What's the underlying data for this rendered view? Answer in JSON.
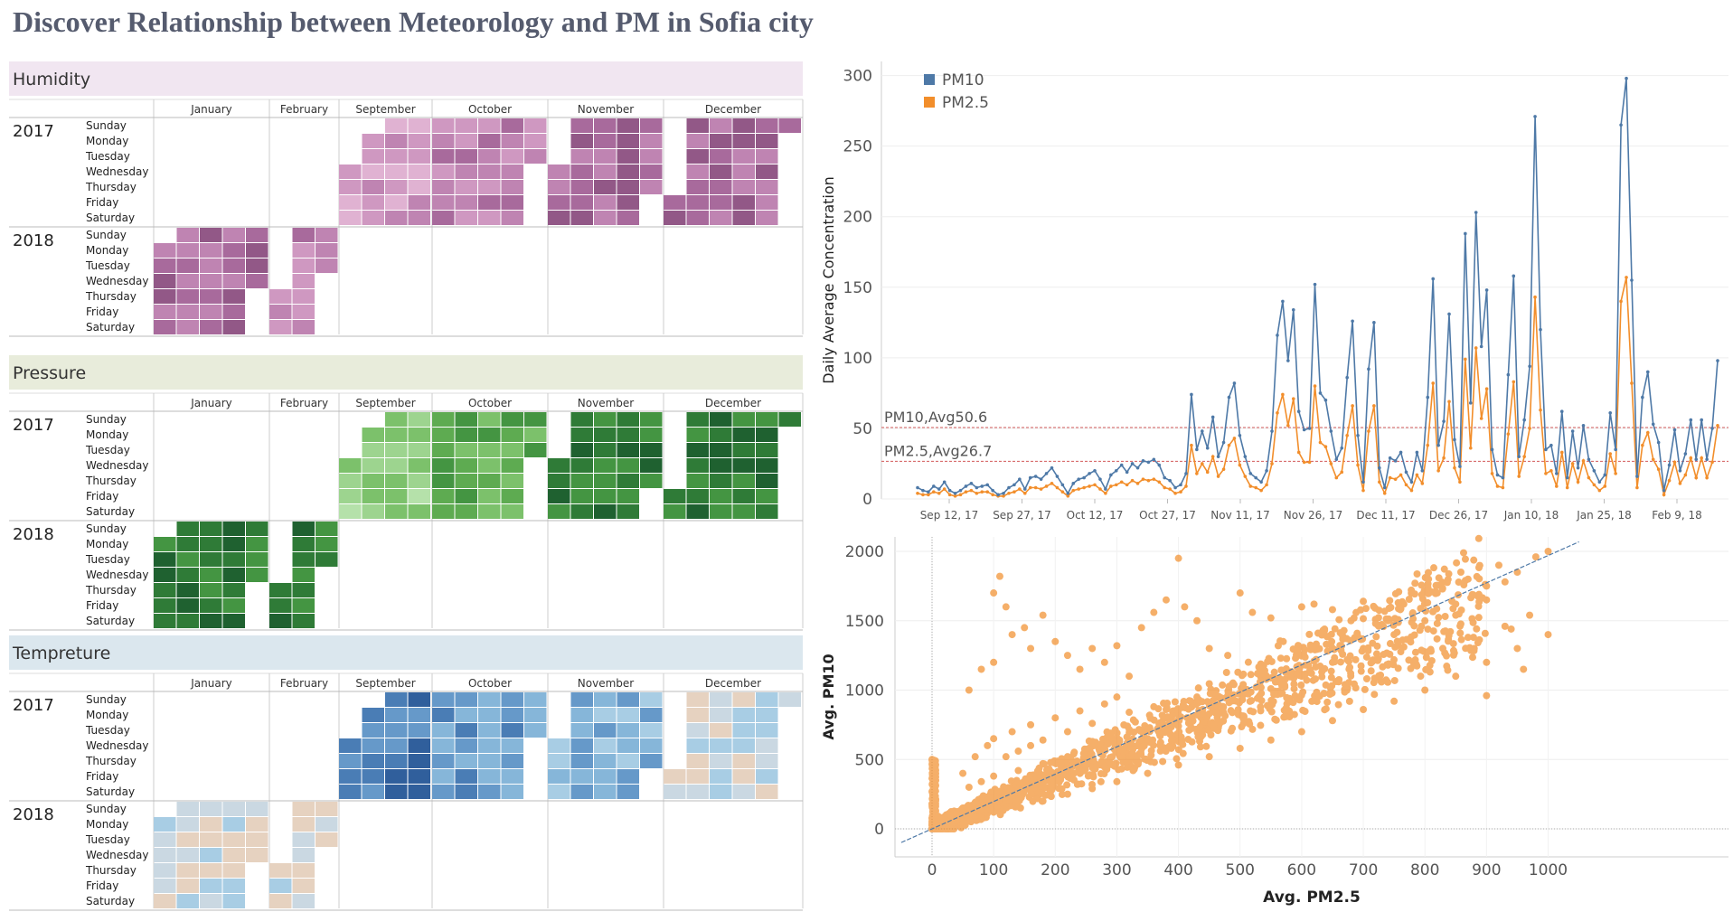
{
  "page_title": "Discover Relationship between Meteorology and PM in Sofia city",
  "heatmaps": {
    "months": [
      "January",
      "February",
      "September",
      "October",
      "November",
      "December"
    ],
    "days": [
      "Sunday",
      "Monday",
      "Tuesday",
      "Wednesday",
      "Thursday",
      "Friday",
      "Saturday"
    ],
    "years": [
      "2017",
      "2018"
    ],
    "panels": [
      {
        "title": "Humidity",
        "header_color": "#f1e6f1",
        "palette": [
          "#ecc6e1",
          "#e0b2d2",
          "#cf98c1",
          "#bf84b2",
          "#a86a9c",
          "#925887",
          "#7a4671"
        ]
      },
      {
        "title": "Pressure",
        "header_color": "#e8ecdb",
        "palette": [
          "#b5e1aa",
          "#9dd48f",
          "#7cc16b",
          "#5eab51",
          "#449542",
          "#2f7b37",
          "#1f6130"
        ]
      },
      {
        "title": "Tempreture",
        "header_color": "#dbe7ee",
        "palette": [
          "#f5c89a",
          "#e6d2c0",
          "#cad8e2",
          "#a8cde4",
          "#86b6d9",
          "#6699c9",
          "#4a7db5",
          "#305f9c"
        ]
      }
    ]
  },
  "chart_data": [
    {
      "type": "line",
      "ylabel": "Daily Average Concentration",
      "xlabel": "",
      "ylim": [
        0,
        310
      ],
      "yticks": [
        0,
        50,
        100,
        150,
        200,
        250,
        300
      ],
      "x_tick_labels": [
        "Sep 12, 17",
        "Sep 27, 17",
        "Oct 12, 17",
        "Oct 27, 17",
        "Nov 11, 17",
        "Nov 26, 17",
        "Dec 11, 17",
        "Dec 26, 17",
        "Jan 10, 18",
        "Jan 25, 18",
        "Feb 9, 18"
      ],
      "x_start": "2017-09-10",
      "legend": "top-left",
      "reference_lines": [
        {
          "label": "PM10,Avg50.6",
          "value": 50.6
        },
        {
          "label": "PM2.5,Avg26.7",
          "value": 26.7
        }
      ],
      "series": [
        {
          "name": "PM10",
          "color": "#4e79a7",
          "values": [
            8,
            6,
            5,
            9,
            7,
            12,
            6,
            4,
            6,
            9,
            11,
            8,
            9,
            10,
            6,
            3,
            4,
            8,
            10,
            14,
            7,
            15,
            16,
            14,
            18,
            22,
            16,
            10,
            4,
            11,
            14,
            15,
            18,
            20,
            14,
            7,
            17,
            20,
            24,
            19,
            25,
            22,
            27,
            26,
            28,
            24,
            15,
            13,
            8,
            10,
            18,
            74,
            35,
            48,
            36,
            58,
            30,
            40,
            72,
            82,
            45,
            30,
            18,
            15,
            12,
            20,
            48,
            116,
            140,
            98,
            134,
            62,
            49,
            50,
            152,
            75,
            70,
            48,
            28,
            36,
            86,
            126,
            45,
            12,
            92,
            125,
            22,
            8,
            29,
            27,
            33,
            19,
            12,
            33,
            20,
            72,
            156,
            38,
            55,
            131,
            42,
            23,
            188,
            68,
            203,
            108,
            148,
            35,
            17,
            15,
            88,
            158,
            30,
            56,
            94,
            271,
            120,
            35,
            38,
            18,
            62,
            15,
            48,
            22,
            52,
            28,
            20,
            12,
            17,
            61,
            35,
            265,
            298,
            155,
            16,
            72,
            90,
            53,
            40,
            6,
            24,
            49,
            20,
            32,
            56,
            28,
            56,
            28,
            50,
            98
          ]
        },
        {
          "name": "PM2.5",
          "color": "#f28e2b",
          "values": [
            4,
            3,
            3,
            5,
            4,
            7,
            3,
            2,
            3,
            5,
            6,
            4,
            5,
            5,
            3,
            2,
            2,
            4,
            5,
            7,
            4,
            8,
            8,
            7,
            9,
            11,
            8,
            5,
            2,
            6,
            7,
            8,
            9,
            10,
            7,
            4,
            9,
            10,
            12,
            10,
            13,
            11,
            14,
            13,
            14,
            12,
            8,
            7,
            4,
            5,
            9,
            38,
            18,
            25,
            19,
            30,
            16,
            21,
            38,
            43,
            24,
            16,
            9,
            8,
            6,
            10,
            25,
            61,
            74,
            52,
            71,
            33,
            26,
            26,
            80,
            40,
            37,
            25,
            15,
            19,
            45,
            66,
            24,
            6,
            48,
            66,
            12,
            4,
            15,
            14,
            17,
            10,
            6,
            17,
            11,
            38,
            82,
            20,
            29,
            69,
            22,
            12,
            99,
            36,
            107,
            57,
            78,
            18,
            9,
            8,
            46,
            83,
            16,
            30,
            50,
            143,
            63,
            18,
            20,
            9,
            33,
            8,
            25,
            12,
            27,
            15,
            10,
            6,
            9,
            32,
            18,
            140,
            157,
            82,
            8,
            38,
            47,
            28,
            21,
            3,
            13,
            26,
            11,
            17,
            29,
            15,
            29,
            15,
            26,
            52
          ]
        }
      ]
    },
    {
      "type": "scatter",
      "xlabel": "Avg. PM2.5",
      "ylabel": "Avg. PM10",
      "xlim": [
        -50,
        1050
      ],
      "ylim": [
        -100,
        2100
      ],
      "xticks": [
        0,
        100,
        200,
        300,
        400,
        500,
        600,
        700,
        800,
        900,
        1000
      ],
      "yticks": [
        0,
        500,
        1000,
        1500,
        2000
      ],
      "color": "#f28e2b",
      "trend_line": {
        "color": "#4e79a7",
        "slope": 1.97,
        "intercept": 0
      },
      "points": [
        [
          0,
          0
        ],
        [
          2,
          60
        ],
        [
          5,
          120
        ],
        [
          3,
          300
        ],
        [
          1,
          450
        ],
        [
          0,
          500
        ],
        [
          10,
          90
        ],
        [
          25,
          70
        ],
        [
          40,
          110
        ],
        [
          60,
          150
        ],
        [
          80,
          180
        ],
        [
          100,
          220
        ],
        [
          120,
          260
        ],
        [
          150,
          310
        ],
        [
          180,
          360
        ],
        [
          200,
          400
        ],
        [
          250,
          470
        ],
        [
          300,
          560
        ],
        [
          350,
          650
        ],
        [
          400,
          740
        ],
        [
          450,
          830
        ],
        [
          500,
          920
        ],
        [
          550,
          1010
        ],
        [
          600,
          1100
        ],
        [
          650,
          1200
        ],
        [
          700,
          1300
        ],
        [
          750,
          1400
        ],
        [
          800,
          1500
        ],
        [
          850,
          1620
        ],
        [
          900,
          1750
        ],
        [
          950,
          1850
        ],
        [
          1000,
          2000
        ],
        [
          980,
          1960
        ],
        [
          920,
          1900
        ],
        [
          870,
          1800
        ],
        [
          820,
          1700
        ],
        [
          760,
          1580
        ],
        [
          720,
          1480
        ],
        [
          690,
          1410
        ],
        [
          640,
          1330
        ],
        [
          590,
          1230
        ],
        [
          540,
          1140
        ],
        [
          490,
          1040
        ],
        [
          430,
          950
        ],
        [
          380,
          860
        ],
        [
          330,
          770
        ],
        [
          290,
          690
        ],
        [
          260,
          620
        ],
        [
          230,
          540
        ],
        [
          210,
          480
        ],
        [
          190,
          430
        ],
        [
          170,
          380
        ],
        [
          140,
          330
        ],
        [
          110,
          270
        ],
        [
          90,
          230
        ],
        [
          70,
          190
        ],
        [
          50,
          150
        ],
        [
          30,
          100
        ],
        [
          15,
          70
        ],
        [
          60,
          1000
        ],
        [
          80,
          1150
        ],
        [
          100,
          1200
        ],
        [
          110,
          1820
        ],
        [
          100,
          1700
        ],
        [
          120,
          1600
        ],
        [
          130,
          1400
        ],
        [
          150,
          1450
        ],
        [
          160,
          1300
        ],
        [
          180,
          1540
        ],
        [
          200,
          1350
        ],
        [
          220,
          1250
        ],
        [
          240,
          1150
        ],
        [
          260,
          1300
        ],
        [
          280,
          1200
        ],
        [
          300,
          1320
        ],
        [
          320,
          1100
        ],
        [
          340,
          1450
        ],
        [
          360,
          1560
        ],
        [
          380,
          1650
        ],
        [
          400,
          1950
        ],
        [
          410,
          1600
        ],
        [
          430,
          1500
        ],
        [
          450,
          1300
        ],
        [
          480,
          1250
        ],
        [
          500,
          1700
        ],
        [
          520,
          1560
        ],
        [
          550,
          1520
        ],
        [
          570,
          1350
        ],
        [
          600,
          1600
        ],
        [
          620,
          1620
        ],
        [
          650,
          1580
        ],
        [
          680,
          1500
        ],
        [
          700,
          1640
        ],
        [
          740,
          1500
        ],
        [
          780,
          1550
        ],
        [
          820,
          1480
        ],
        [
          850,
          1540
        ],
        [
          880,
          1300
        ],
        [
          900,
          960
        ],
        [
          940,
          1440
        ],
        [
          960,
          1150
        ],
        [
          900,
          1650
        ],
        [
          930,
          1780
        ],
        [
          50,
          400
        ],
        [
          70,
          520
        ],
        [
          90,
          600
        ],
        [
          100,
          650
        ],
        [
          130,
          700
        ],
        [
          160,
          750
        ],
        [
          200,
          800
        ],
        [
          240,
          850
        ],
        [
          280,
          900
        ],
        [
          300,
          950
        ],
        [
          120,
          520
        ],
        [
          140,
          560
        ],
        [
          160,
          600
        ],
        [
          180,
          640
        ],
        [
          220,
          700
        ],
        [
          260,
          760
        ],
        [
          320,
          840
        ],
        [
          360,
          880
        ],
        [
          420,
          920
        ],
        [
          460,
          980
        ],
        [
          60,
          300
        ],
        [
          80,
          340
        ],
        [
          100,
          380
        ],
        [
          140,
          420
        ],
        [
          180,
          470
        ],
        [
          220,
          520
        ],
        [
          280,
          580
        ],
        [
          340,
          640
        ],
        [
          420,
          720
        ],
        [
          500,
          820
        ],
        [
          580,
          940
        ],
        [
          660,
          1060
        ],
        [
          740,
          1180
        ],
        [
          810,
          1280
        ],
        [
          870,
          1380
        ],
        [
          930,
          1460
        ],
        [
          970,
          1540
        ],
        [
          40,
          60
        ],
        [
          70,
          90
        ],
        [
          100,
          120
        ],
        [
          140,
          160
        ],
        [
          180,
          200
        ],
        [
          220,
          250
        ],
        [
          260,
          290
        ],
        [
          300,
          340
        ],
        [
          350,
          400
        ],
        [
          400,
          460
        ],
        [
          450,
          520
        ],
        [
          500,
          580
        ],
        [
          550,
          640
        ],
        [
          600,
          700
        ],
        [
          650,
          780
        ],
        [
          700,
          860
        ],
        [
          750,
          920
        ],
        [
          800,
          1000
        ],
        [
          850,
          1100
        ],
        [
          900,
          1200
        ],
        [
          950,
          1300
        ],
        [
          1000,
          1400
        ]
      ]
    }
  ]
}
